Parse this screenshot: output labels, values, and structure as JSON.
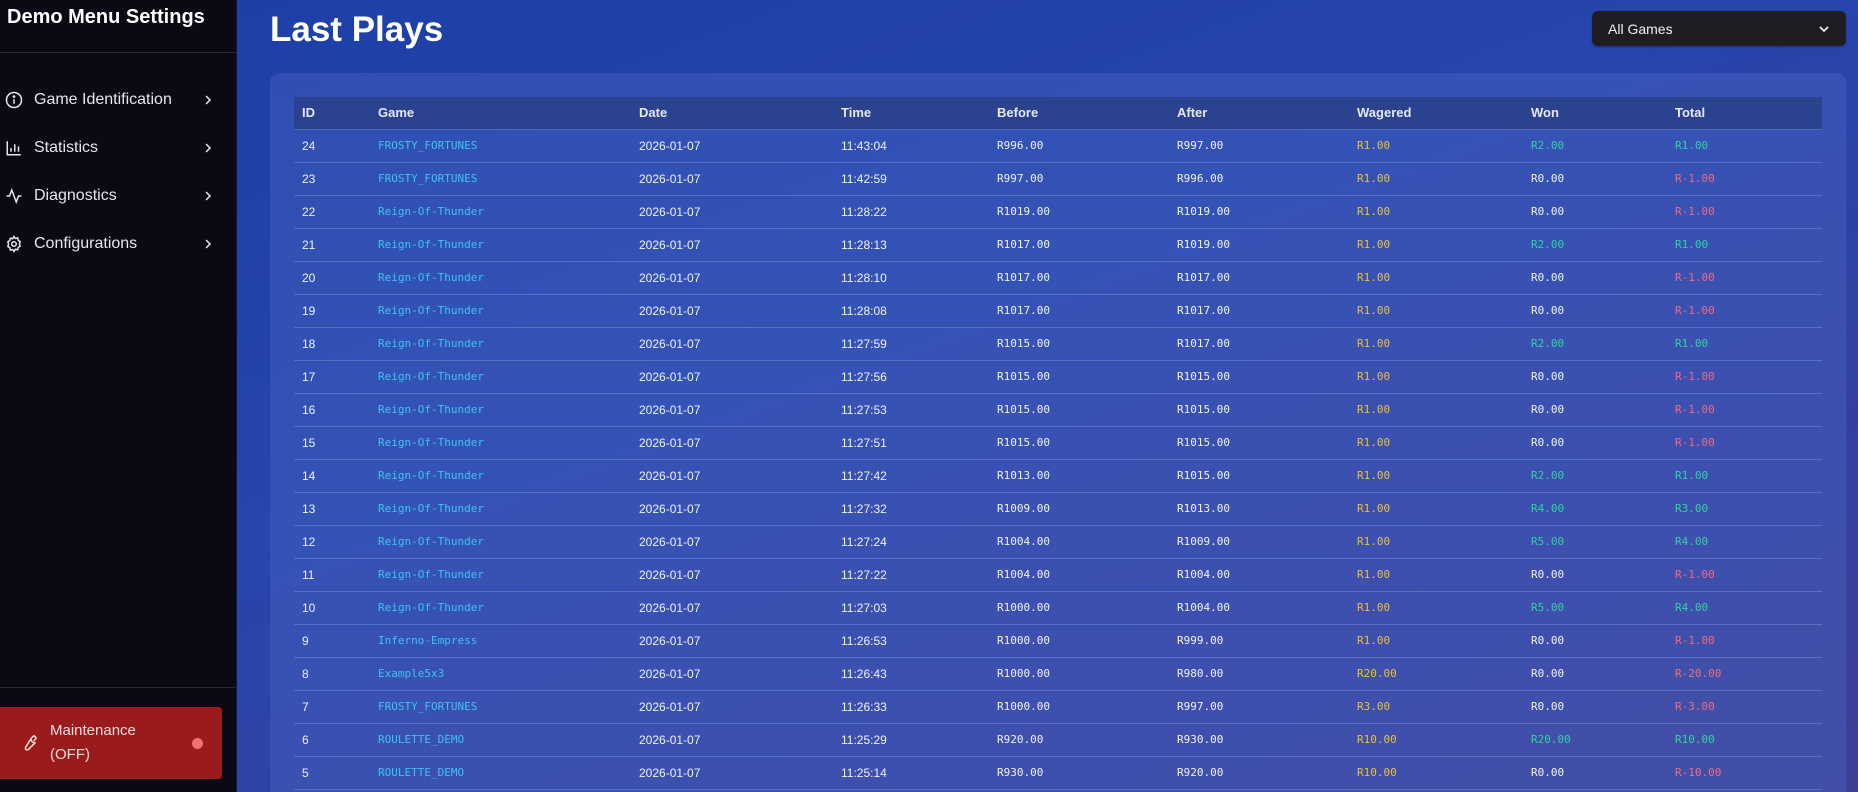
{
  "sidebar": {
    "title": "Demo Menu Settings",
    "items": [
      {
        "label": "Game Identification",
        "icon": "info-circle-icon"
      },
      {
        "label": "Statistics",
        "icon": "bar-chart-icon"
      },
      {
        "label": "Diagnostics",
        "icon": "activity-pulse-icon"
      },
      {
        "label": "Configurations",
        "icon": "gear-icon"
      }
    ],
    "maintenance": {
      "label": "Maintenance (OFF)",
      "icon": "wrench-icon",
      "status_color": "#f26f73"
    }
  },
  "header": {
    "title": "Last Plays",
    "game_filter": {
      "selected": "All Games"
    }
  },
  "colors": {
    "game_link": "#3ec3f0",
    "wagered": "#e8c13a",
    "positive": "#2fd3a0",
    "negative": "#ef6b82",
    "maintenance_bg": "#9b1a1c"
  },
  "table": {
    "columns": [
      "ID",
      "Game",
      "Date",
      "Time",
      "Before",
      "After",
      "Wagered",
      "Won",
      "Total"
    ],
    "rows": [
      {
        "id": "24",
        "game": "FROSTY_FORTUNES",
        "date": "2026-01-07",
        "time": "11:43:04",
        "before": "R996.00",
        "after": "R997.00",
        "wagered": "R1.00",
        "won": "R2.00",
        "total": "R1.00"
      },
      {
        "id": "23",
        "game": "FROSTY_FORTUNES",
        "date": "2026-01-07",
        "time": "11:42:59",
        "before": "R997.00",
        "after": "R996.00",
        "wagered": "R1.00",
        "won": "R0.00",
        "total": "R-1.00"
      },
      {
        "id": "22",
        "game": "Reign-Of-Thunder",
        "date": "2026-01-07",
        "time": "11:28:22",
        "before": "R1019.00",
        "after": "R1019.00",
        "wagered": "R1.00",
        "won": "R0.00",
        "total": "R-1.00"
      },
      {
        "id": "21",
        "game": "Reign-Of-Thunder",
        "date": "2026-01-07",
        "time": "11:28:13",
        "before": "R1017.00",
        "after": "R1019.00",
        "wagered": "R1.00",
        "won": "R2.00",
        "total": "R1.00"
      },
      {
        "id": "20",
        "game": "Reign-Of-Thunder",
        "date": "2026-01-07",
        "time": "11:28:10",
        "before": "R1017.00",
        "after": "R1017.00",
        "wagered": "R1.00",
        "won": "R0.00",
        "total": "R-1.00"
      },
      {
        "id": "19",
        "game": "Reign-Of-Thunder",
        "date": "2026-01-07",
        "time": "11:28:08",
        "before": "R1017.00",
        "after": "R1017.00",
        "wagered": "R1.00",
        "won": "R0.00",
        "total": "R-1.00"
      },
      {
        "id": "18",
        "game": "Reign-Of-Thunder",
        "date": "2026-01-07",
        "time": "11:27:59",
        "before": "R1015.00",
        "after": "R1017.00",
        "wagered": "R1.00",
        "won": "R2.00",
        "total": "R1.00"
      },
      {
        "id": "17",
        "game": "Reign-Of-Thunder",
        "date": "2026-01-07",
        "time": "11:27:56",
        "before": "R1015.00",
        "after": "R1015.00",
        "wagered": "R1.00",
        "won": "R0.00",
        "total": "R-1.00"
      },
      {
        "id": "16",
        "game": "Reign-Of-Thunder",
        "date": "2026-01-07",
        "time": "11:27:53",
        "before": "R1015.00",
        "after": "R1015.00",
        "wagered": "R1.00",
        "won": "R0.00",
        "total": "R-1.00"
      },
      {
        "id": "15",
        "game": "Reign-Of-Thunder",
        "date": "2026-01-07",
        "time": "11:27:51",
        "before": "R1015.00",
        "after": "R1015.00",
        "wagered": "R1.00",
        "won": "R0.00",
        "total": "R-1.00"
      },
      {
        "id": "14",
        "game": "Reign-Of-Thunder",
        "date": "2026-01-07",
        "time": "11:27:42",
        "before": "R1013.00",
        "after": "R1015.00",
        "wagered": "R1.00",
        "won": "R2.00",
        "total": "R1.00"
      },
      {
        "id": "13",
        "game": "Reign-Of-Thunder",
        "date": "2026-01-07",
        "time": "11:27:32",
        "before": "R1009.00",
        "after": "R1013.00",
        "wagered": "R1.00",
        "won": "R4.00",
        "total": "R3.00"
      },
      {
        "id": "12",
        "game": "Reign-Of-Thunder",
        "date": "2026-01-07",
        "time": "11:27:24",
        "before": "R1004.00",
        "after": "R1009.00",
        "wagered": "R1.00",
        "won": "R5.00",
        "total": "R4.00"
      },
      {
        "id": "11",
        "game": "Reign-Of-Thunder",
        "date": "2026-01-07",
        "time": "11:27:22",
        "before": "R1004.00",
        "after": "R1004.00",
        "wagered": "R1.00",
        "won": "R0.00",
        "total": "R-1.00"
      },
      {
        "id": "10",
        "game": "Reign-Of-Thunder",
        "date": "2026-01-07",
        "time": "11:27:03",
        "before": "R1000.00",
        "after": "R1004.00",
        "wagered": "R1.00",
        "won": "R5.00",
        "total": "R4.00"
      },
      {
        "id": "9",
        "game": "Inferno-Empress",
        "date": "2026-01-07",
        "time": "11:26:53",
        "before": "R1000.00",
        "after": "R999.00",
        "wagered": "R1.00",
        "won": "R0.00",
        "total": "R-1.00"
      },
      {
        "id": "8",
        "game": "Example5x3",
        "date": "2026-01-07",
        "time": "11:26:43",
        "before": "R1000.00",
        "after": "R980.00",
        "wagered": "R20.00",
        "won": "R0.00",
        "total": "R-20.00"
      },
      {
        "id": "7",
        "game": "FROSTY_FORTUNES",
        "date": "2026-01-07",
        "time": "11:26:33",
        "before": "R1000.00",
        "after": "R997.00",
        "wagered": "R3.00",
        "won": "R0.00",
        "total": "R-3.00"
      },
      {
        "id": "6",
        "game": "ROULETTE_DEMO",
        "date": "2026-01-07",
        "time": "11:25:29",
        "before": "R920.00",
        "after": "R930.00",
        "wagered": "R10.00",
        "won": "R20.00",
        "total": "R10.00"
      },
      {
        "id": "5",
        "game": "ROULETTE_DEMO",
        "date": "2026-01-07",
        "time": "11:25:14",
        "before": "R930.00",
        "after": "R920.00",
        "wagered": "R10.00",
        "won": "R0.00",
        "total": "R-10.00"
      }
    ]
  }
}
